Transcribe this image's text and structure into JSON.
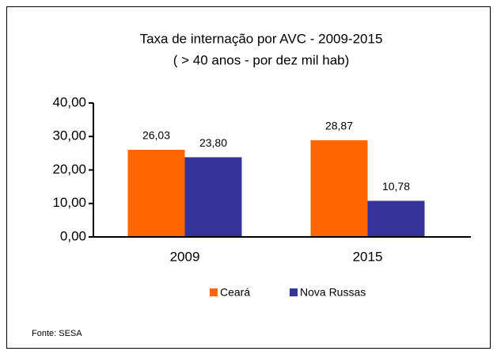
{
  "chart_data": {
    "type": "bar",
    "title": "Taxa de internação por AVC - 2009-2015",
    "subtitle": "( > 40 anos - por dez mil hab)",
    "categories": [
      "2009",
      "2015"
    ],
    "series": [
      {
        "name": "Ceará",
        "color": "#ff6600",
        "values": [
          26.03,
          28.87
        ],
        "value_labels": [
          "26,03",
          "28,87"
        ]
      },
      {
        "name": "Nova Russas",
        "color": "#333399",
        "values": [
          23.8,
          10.78
        ],
        "value_labels": [
          "23,80",
          "10,78"
        ]
      }
    ],
    "ylim": [
      0,
      40
    ],
    "yticks": [
      {
        "value": 0,
        "label": "0,00"
      },
      {
        "value": 10,
        "label": "10,00"
      },
      {
        "value": 20,
        "label": "20,00"
      },
      {
        "value": 30,
        "label": "30,00"
      },
      {
        "value": 40,
        "label": "40,00"
      }
    ],
    "grid": false,
    "legend": "bottom",
    "source": "Fonte: SESA"
  }
}
